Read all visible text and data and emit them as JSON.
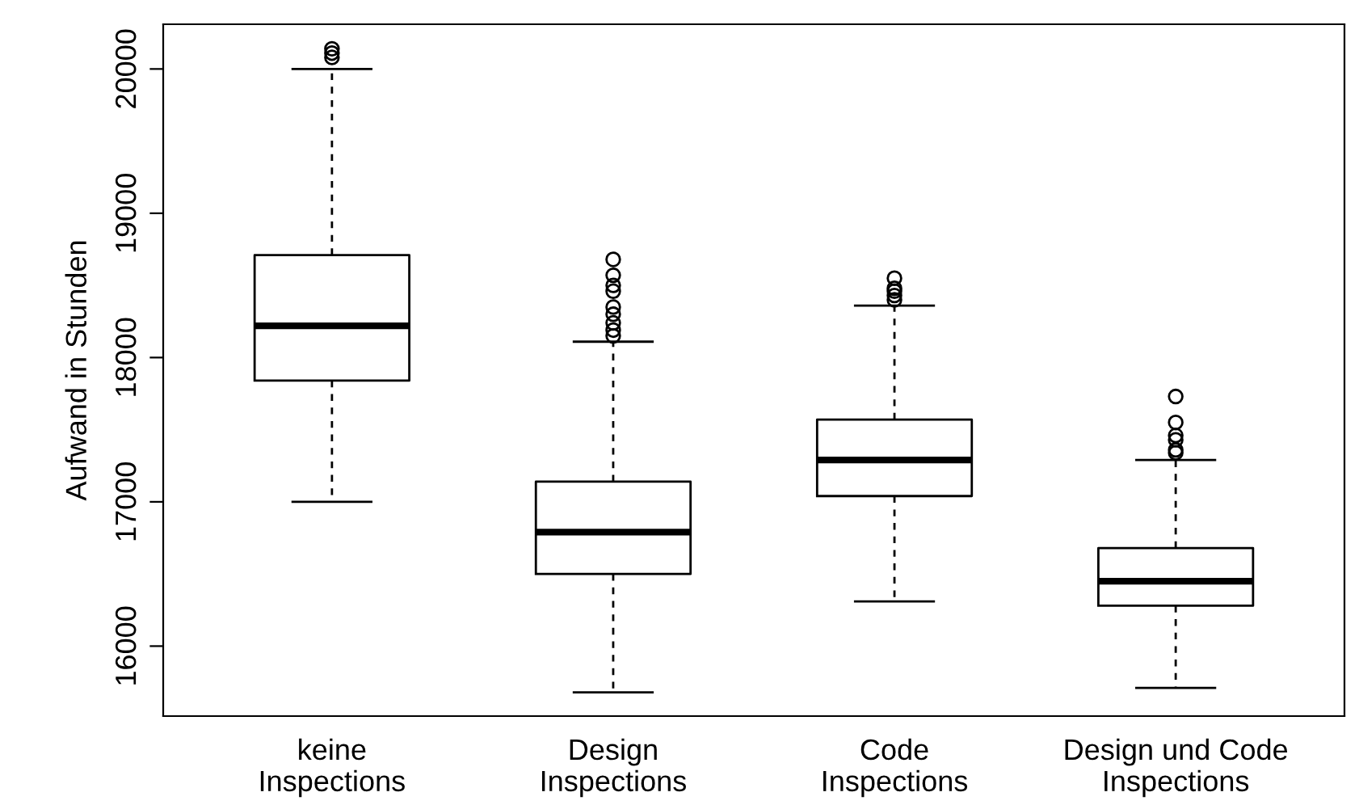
{
  "chart_data": {
    "type": "box",
    "ylabel": "Aufwand in Stunden",
    "categories": [
      "keine\nInspections",
      "Design\nInspections",
      "Code\nInspections",
      "Design und Code\nInspections"
    ],
    "boxes": [
      {
        "low": 17000,
        "q1": 17840,
        "median": 18220,
        "q3": 18710,
        "high": 20000,
        "outliers": [
          20080,
          20110,
          20140
        ]
      },
      {
        "low": 15680,
        "q1": 16500,
        "median": 16790,
        "q3": 17140,
        "high": 18110,
        "outliers": [
          18150,
          18190,
          18240,
          18300,
          18350,
          18460,
          18500,
          18570,
          18680
        ]
      },
      {
        "low": 16310,
        "q1": 17040,
        "median": 17290,
        "q3": 17570,
        "high": 18360,
        "outliers": [
          18400,
          18430,
          18460,
          18480,
          18550
        ]
      },
      {
        "low": 15710,
        "q1": 16280,
        "median": 16450,
        "q3": 16680,
        "high": 17290,
        "outliers": [
          17340,
          17360,
          17430,
          17460,
          17550,
          17730
        ]
      }
    ],
    "ylim": [
      15515,
      20310
    ],
    "yticks": [
      16000,
      17000,
      18000,
      19000,
      20000
    ],
    "grid": false,
    "marker": "circle"
  }
}
